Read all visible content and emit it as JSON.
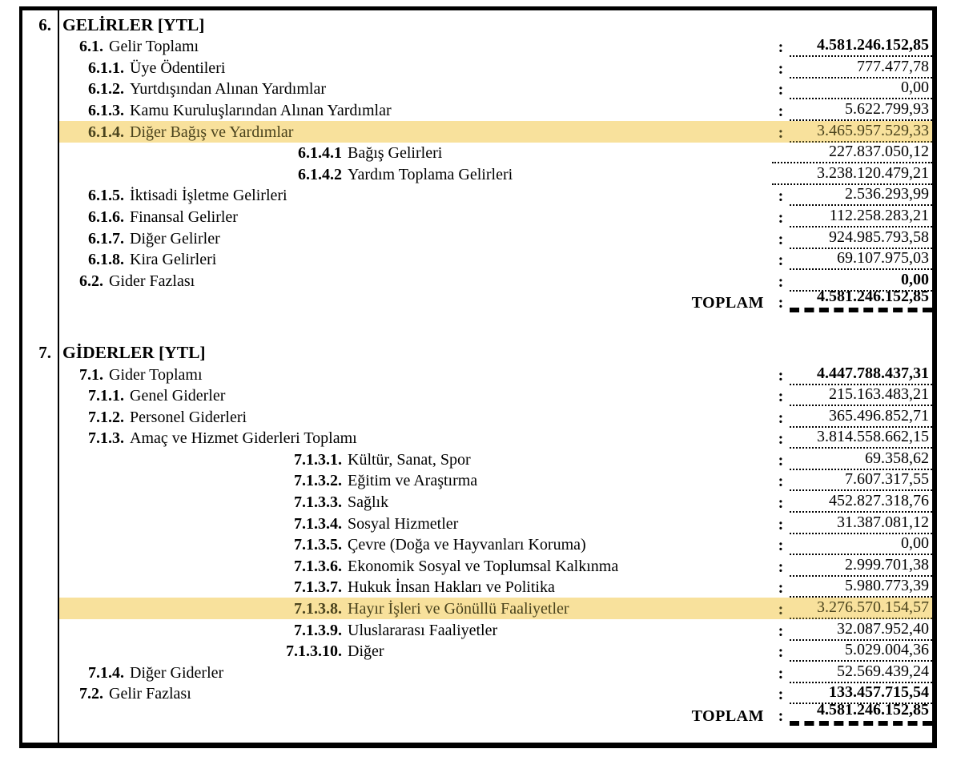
{
  "colors": {
    "highlight_background": "#f8e19c",
    "highlight_text": "#4a431d",
    "border": "#000000"
  },
  "sections": [
    {
      "number": "6.",
      "title": "GELİRLER [YTL]",
      "rows": [
        {
          "num": "6.1.",
          "label": "Gelir Toplamı",
          "level": 1,
          "colon": ":",
          "value": "4.581.246.152,85",
          "bold": true,
          "highlight": false
        },
        {
          "num": "6.1.1.",
          "label": "Üye Ödentileri",
          "level": 2,
          "colon": ":",
          "value": "777.477,78",
          "bold": false,
          "highlight": false
        },
        {
          "num": "6.1.2.",
          "label": "Yurtdışından Alınan Yardımlar",
          "level": 2,
          "colon": ":",
          "value": "0,00",
          "bold": false,
          "highlight": false
        },
        {
          "num": "6.1.3.",
          "label": "Kamu Kuruluşlarından Alınan Yardımlar",
          "level": 2,
          "colon": ":",
          "value": "5.622.799,93",
          "bold": false,
          "highlight": false
        },
        {
          "num": "6.1.4.",
          "label": "Diğer Bağış ve Yardımlar",
          "level": 2,
          "colon": ":",
          "value": "3.465.957.529,33",
          "bold": false,
          "highlight": true
        },
        {
          "num": "6.1.4.1",
          "label": "Bağış Gelirleri",
          "level": 3,
          "colon": "",
          "value": "227.837.050,12",
          "bold": false,
          "highlight": false
        },
        {
          "num": "6.1.4.2",
          "label": "Yardım Toplama Gelirleri",
          "level": 3,
          "colon": "",
          "value": "3.238.120.479,21",
          "bold": false,
          "highlight": false
        },
        {
          "num": "6.1.5.",
          "label": "İktisadi İşletme Gelirleri",
          "level": 2,
          "colon": ":",
          "value": "2.536.293,99",
          "bold": false,
          "highlight": false
        },
        {
          "num": "6.1.6.",
          "label": "Finansal Gelirler",
          "level": 2,
          "colon": ":",
          "value": "112.258.283,21",
          "bold": false,
          "highlight": false
        },
        {
          "num": "6.1.7.",
          "label": "Diğer Gelirler",
          "level": 2,
          "colon": ":",
          "value": "924.985.793,58",
          "bold": false,
          "highlight": false
        },
        {
          "num": "6.1.8.",
          "label": "Kira Gelirleri",
          "level": 2,
          "colon": ":",
          "value": "69.107.975,03",
          "bold": false,
          "highlight": false
        },
        {
          "num": "6.2.",
          "label": "Gider Fazlası",
          "level": 1,
          "colon": ":",
          "value": "0,00",
          "bold": true,
          "highlight": false
        }
      ],
      "total": {
        "label": "TOPLAM",
        "colon": ":",
        "value": "4.581.246.152,85"
      }
    },
    {
      "number": "7.",
      "title": "GİDERLER [YTL]",
      "rows": [
        {
          "num": "7.1.",
          "label": "Gider Toplamı",
          "level": 1,
          "colon": ":",
          "value": "4.447.788.437,31",
          "bold": true,
          "highlight": false
        },
        {
          "num": "7.1.1.",
          "label": "Genel Giderler",
          "level": 2,
          "colon": ":",
          "value": "215.163.483,21",
          "bold": false,
          "highlight": false
        },
        {
          "num": "7.1.2.",
          "label": "Personel Giderleri",
          "level": 2,
          "colon": ":",
          "value": "365.496.852,71",
          "bold": false,
          "highlight": false
        },
        {
          "num": "7.1.3.",
          "label": "Amaç ve Hizmet Giderleri Toplamı",
          "level": 2,
          "colon": ":",
          "value": "3.814.558.662,15",
          "bold": false,
          "highlight": false
        },
        {
          "num": "7.1.3.1.",
          "label": "Kültür, Sanat, Spor",
          "level": 3,
          "colon": ":",
          "value": "69.358,62",
          "bold": false,
          "highlight": false
        },
        {
          "num": "7.1.3.2.",
          "label": "Eğitim ve Araştırma",
          "level": 3,
          "colon": ":",
          "value": "7.607.317,55",
          "bold": false,
          "highlight": false
        },
        {
          "num": "7.1.3.3.",
          "label": "Sağlık",
          "level": 3,
          "colon": ":",
          "value": "452.827.318,76",
          "bold": false,
          "highlight": false
        },
        {
          "num": "7.1.3.4.",
          "label": "Sosyal Hizmetler",
          "level": 3,
          "colon": ":",
          "value": "31.387.081,12",
          "bold": false,
          "highlight": false
        },
        {
          "num": "7.1.3.5.",
          "label": "Çevre (Doğa ve Hayvanları Koruma)",
          "level": 3,
          "colon": ":",
          "value": "0,00",
          "bold": false,
          "highlight": false
        },
        {
          "num": "7.1.3.6.",
          "label": "Ekonomik Sosyal ve Toplumsal Kalkınma",
          "level": 3,
          "colon": ":",
          "value": "2.999.701,38",
          "bold": false,
          "highlight": false
        },
        {
          "num": "7.1.3.7.",
          "label": "Hukuk İnsan Hakları ve Politika",
          "level": 3,
          "colon": ":",
          "value": "5.980.773,39",
          "bold": false,
          "highlight": false
        },
        {
          "num": "7.1.3.8.",
          "label": "Hayır İşleri ve Gönüllü Faaliyetler",
          "level": 3,
          "colon": ":",
          "value": "3.276.570.154,57",
          "bold": false,
          "highlight": true
        },
        {
          "num": "7.1.3.9.",
          "label": "Uluslararası Faaliyetler",
          "level": 3,
          "colon": ":",
          "value": "32.087.952,40",
          "bold": false,
          "highlight": false
        },
        {
          "num": "7.1.3.10.",
          "label": "Diğer",
          "level": 3,
          "colon": ":",
          "value": "5.029.004,36",
          "bold": false,
          "highlight": false
        },
        {
          "num": "7.1.4.",
          "label": "Diğer Giderler",
          "level": 2,
          "colon": ":",
          "value": "52.569.439,24",
          "bold": false,
          "highlight": false
        },
        {
          "num": "7.2.",
          "label": "Gelir Fazlası",
          "level": 1,
          "colon": ":",
          "value": "133.457.715,54",
          "bold": true,
          "highlight": false
        }
      ],
      "total": {
        "label": "TOPLAM",
        "colon": ":",
        "value": "4.581.246.152,85"
      }
    }
  ]
}
